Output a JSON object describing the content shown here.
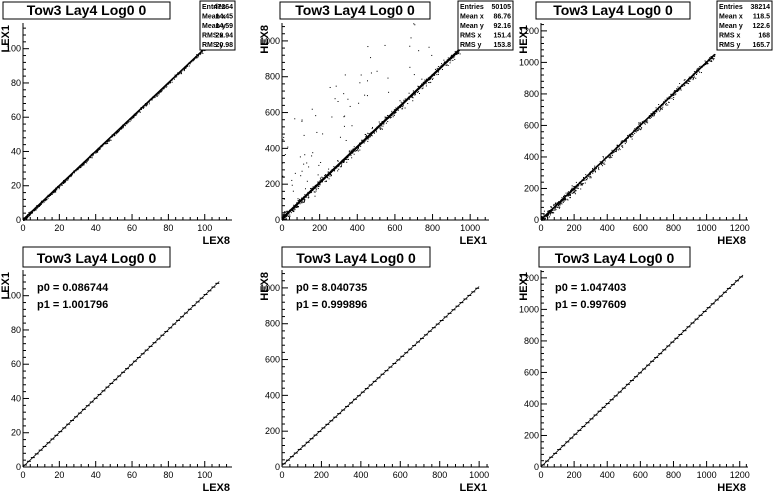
{
  "chart_data": [
    {
      "type": "scatter",
      "title": "Tow3 Lay4 Log0 0",
      "xlabel": "LEX8",
      "ylabel": "LEX1",
      "xlim": [
        0,
        115
      ],
      "ylim": [
        0,
        115
      ],
      "xticks": [
        0,
        20,
        40,
        60,
        80,
        100
      ],
      "yticks": [
        0,
        20,
        40,
        60,
        80,
        100
      ],
      "stats": [
        {
          "label": "Entries",
          "value": "47264"
        },
        {
          "label": "Mean x",
          "value": "14.45"
        },
        {
          "label": "Mean y",
          "value": "14.59"
        },
        {
          "label": "RMS x",
          "value": "20.94"
        },
        {
          "label": "RMS y",
          "value": "20.98"
        }
      ],
      "trend": {
        "x0": 0,
        "x1": 108,
        "slope": 1.0,
        "intercept": 0.1
      }
    },
    {
      "type": "scatter",
      "title": "Tow3 Lay4 Log0 0",
      "xlabel": "LEX1",
      "ylabel": "HEX8",
      "xlim": [
        0,
        1100
      ],
      "ylim": [
        0,
        1100
      ],
      "xticks": [
        0,
        200,
        400,
        600,
        800,
        1000
      ],
      "yticks": [
        0,
        200,
        400,
        600,
        800,
        1000
      ],
      "stats": [
        {
          "label": "Entries",
          "value": "50105"
        },
        {
          "label": "Mean x",
          "value": "86.76"
        },
        {
          "label": "Mean y",
          "value": "92.16"
        },
        {
          "label": "RMS x",
          "value": "151.4"
        },
        {
          "label": "RMS y",
          "value": "153.8"
        }
      ],
      "trend": {
        "x0": 0,
        "x1": 980,
        "slope": 1.0,
        "intercept": 8
      }
    },
    {
      "type": "scatter",
      "title": "Tow3 Lay4 Log0 0",
      "xlabel": "HEX8",
      "ylabel": "HEX1",
      "xlim": [
        0,
        1250
      ],
      "ylim": [
        0,
        1250
      ],
      "xticks": [
        0,
        200,
        400,
        600,
        800,
        1000,
        1200
      ],
      "yticks": [
        0,
        200,
        400,
        600,
        800,
        1000,
        1200
      ],
      "stats": [
        {
          "label": "Entries",
          "value": "38214"
        },
        {
          "label": "Mean x",
          "value": "118.5"
        },
        {
          "label": "Mean y",
          "value": "122.6"
        },
        {
          "label": "RMS x",
          "value": "168"
        },
        {
          "label": "RMS y",
          "value": "165.7"
        }
      ],
      "trend": {
        "x0": 0,
        "x1": 1050,
        "slope": 1.0,
        "intercept": 1
      }
    },
    {
      "type": "line",
      "title": "Tow3 Lay4 Log0 0",
      "xlabel": "LEX8",
      "ylabel": "LEX1",
      "xlim": [
        0,
        115
      ],
      "ylim": [
        0,
        115
      ],
      "xticks": [
        0,
        20,
        40,
        60,
        80,
        100
      ],
      "yticks": [
        0,
        20,
        40,
        60,
        80,
        100
      ],
      "fit": [
        {
          "label": "p0 = 0.086744"
        },
        {
          "label": "p1 = 1.001796"
        }
      ],
      "trend": {
        "x0": 0,
        "x1": 108,
        "slope": 1.001796,
        "intercept": 0.086744
      }
    },
    {
      "type": "line",
      "title": "Tow3 Lay4 Log0 0",
      "xlabel": "LEX1",
      "ylabel": "HEX8",
      "xlim": [
        0,
        1050
      ],
      "ylim": [
        0,
        1100
      ],
      "xticks": [
        0,
        200,
        400,
        600,
        800,
        1000
      ],
      "yticks": [
        0,
        200,
        400,
        600,
        800,
        1000
      ],
      "fit": [
        {
          "label": "p0 = 8.040735"
        },
        {
          "label": "p1 = 0.999896"
        }
      ],
      "trend": {
        "x0": 0,
        "x1": 1000,
        "slope": 0.999896,
        "intercept": 8.040735
      }
    },
    {
      "type": "line",
      "title": "Tow3 Lay4 Log0 0",
      "xlabel": "HEX8",
      "ylabel": "HEX1",
      "xlim": [
        0,
        1250
      ],
      "ylim": [
        0,
        1250
      ],
      "xticks": [
        0,
        200,
        400,
        600,
        800,
        1000,
        1200
      ],
      "yticks": [
        0,
        200,
        400,
        600,
        800,
        1000,
        1200
      ],
      "fit": [
        {
          "label": "p0 = 1.047403"
        },
        {
          "label": "p1 = 0.997609"
        }
      ],
      "trend": {
        "x0": 0,
        "x1": 1220,
        "slope": 0.997609,
        "intercept": 1.047403
      }
    }
  ]
}
